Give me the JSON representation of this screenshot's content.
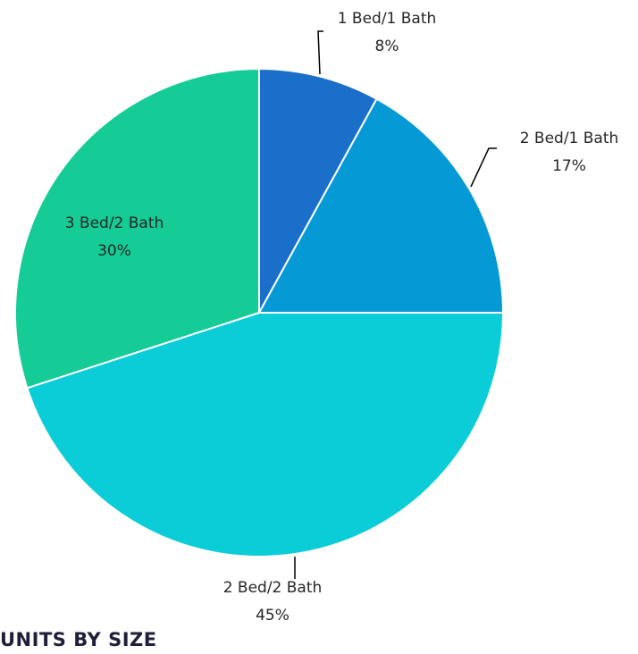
{
  "chart_data": {
    "type": "pie",
    "title": "UNITS BY SIZE",
    "start_angle_deg": 0,
    "direction": "clockwise",
    "slices": [
      {
        "label": "1 Bed/1 Bath",
        "value": 8,
        "value_label": "8%",
        "color": "#1a6fcb"
      },
      {
        "label": "2 Bed/1 Bath",
        "value": 17,
        "value_label": "17%",
        "color": "#0599d6"
      },
      {
        "label": "2 Bed/2 Bath",
        "value": 45,
        "value_label": "45%",
        "color": "#0bcdd8"
      },
      {
        "label": "3 Bed/2 Bath",
        "value": 30,
        "value_label": "30%",
        "color": "#15cc97"
      }
    ],
    "legend": "none",
    "slice_border_color": "#ffffff",
    "leader_line_color": "#000000"
  }
}
